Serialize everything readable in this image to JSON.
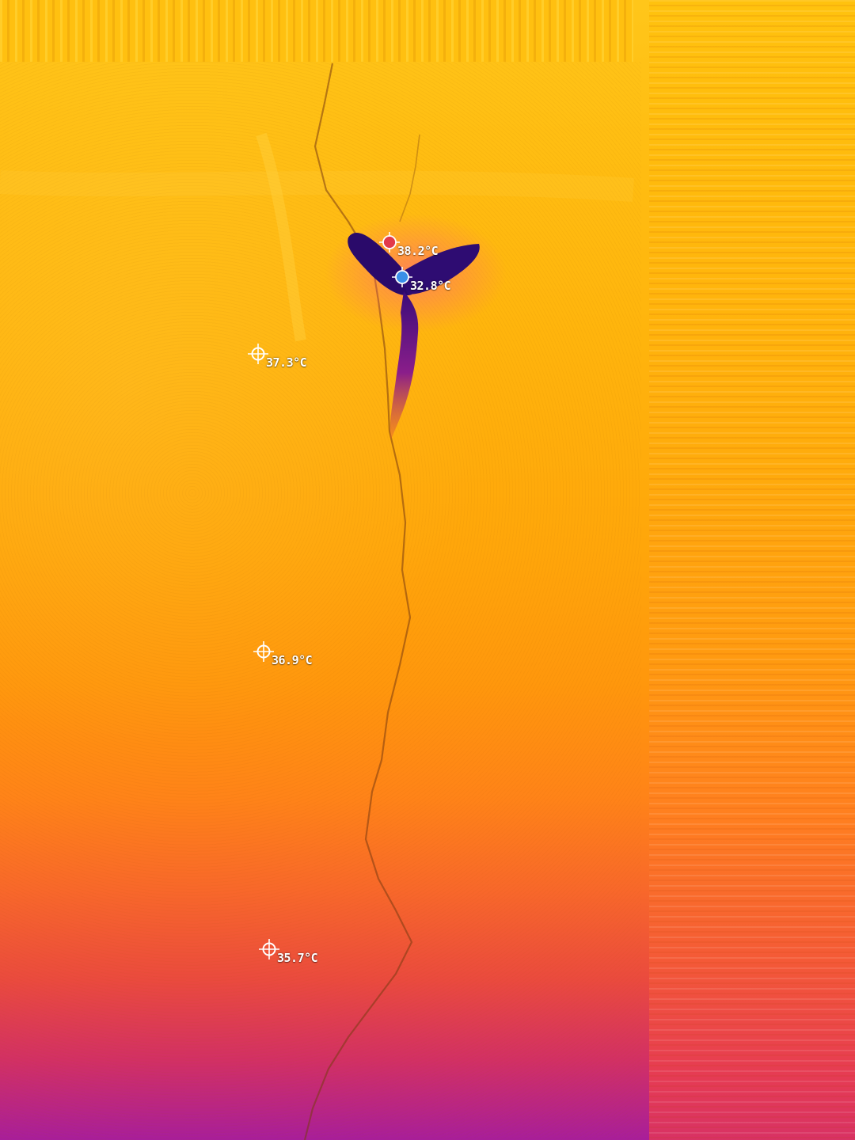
{
  "image": {
    "palette": "iron",
    "colors": {
      "hot_top": "#ffc61a",
      "mid": "#ff970c",
      "cool_bottom": "#a81e9a",
      "cold_spot": "#2a0a6a",
      "max_marker": "#e23a4a",
      "min_marker": "#3a8fe8"
    }
  },
  "markers": {
    "max": {
      "label": "38.2°C",
      "icon": "red-dot-crosshair-icon"
    },
    "min": {
      "label": "32.8°C",
      "icon": "blue-dot-crosshair-icon"
    },
    "spot_1": {
      "label": "37.3°C",
      "icon": "crosshair-icon"
    },
    "spot_2": {
      "label": "36.9°C",
      "icon": "crosshair-icon"
    },
    "spot_3": {
      "label": "35.7°C",
      "icon": "crosshair-icon"
    }
  }
}
